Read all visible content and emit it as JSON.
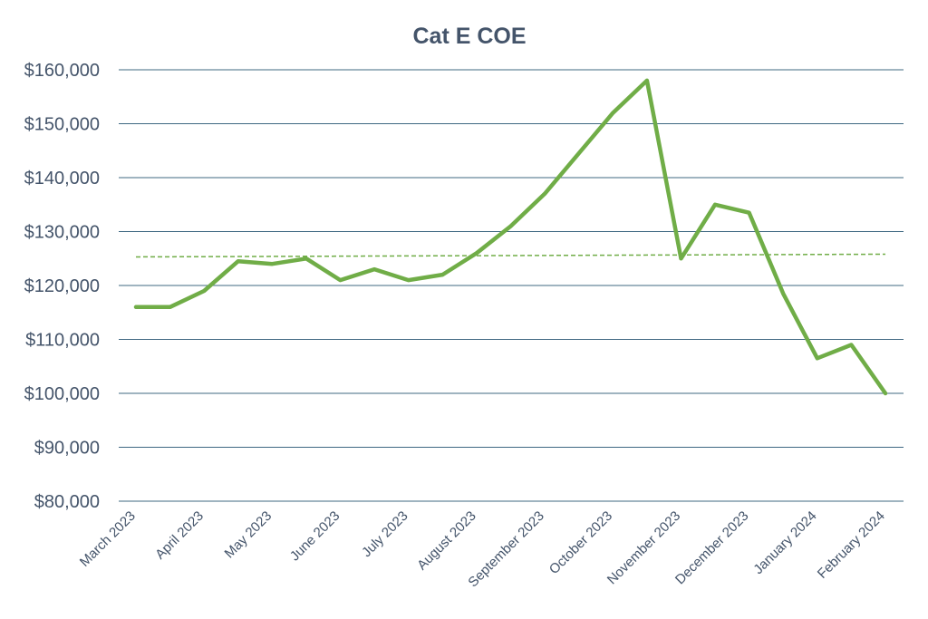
{
  "chart_data": {
    "type": "line",
    "title": "Cat E COE",
    "xlabel": "",
    "ylabel": "",
    "ylim": [
      80000,
      160000
    ],
    "yticks": [
      80000,
      90000,
      100000,
      110000,
      120000,
      130000,
      140000,
      150000,
      160000
    ],
    "ytick_labels": [
      "$80,000",
      "$90,000",
      "$100,000",
      "$110,000",
      "$120,000",
      "$130,000",
      "$140,000",
      "$150,000",
      "$160,000"
    ],
    "x_tick_labels": [
      "March 2023",
      "April 2023",
      "May 2023",
      "June 2023",
      "July 2023",
      "August 2023",
      "September 2023",
      "October 2023",
      "November 2023",
      "December 2023",
      "January 2024",
      "February 2024"
    ],
    "grid": true,
    "legend": "none",
    "series": [
      {
        "color": "#70ad47",
        "style": "solid",
        "values": [
          116000,
          116000,
          119000,
          124500,
          124000,
          125000,
          121000,
          123000,
          121000,
          122000,
          126000,
          131000,
          137000,
          144500,
          152000,
          158000,
          125000,
          135000,
          133500,
          118500,
          106500,
          109000,
          100000
        ]
      },
      {
        "color": "#70ad47",
        "style": "dashed",
        "trendline": "linear",
        "values_start_end": [
          125300,
          125800
        ]
      }
    ]
  }
}
